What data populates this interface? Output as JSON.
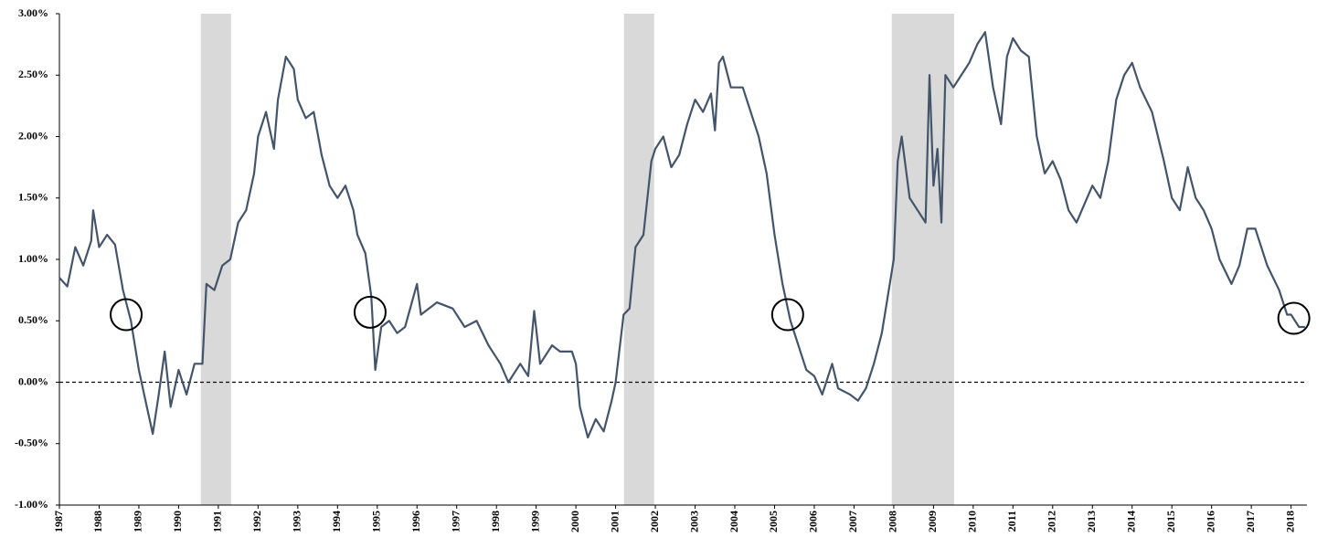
{
  "chart_data": {
    "type": "line",
    "series": [
      {
        "color": "#44546a",
        "x": [
          1987.0,
          1987.2,
          1987.4,
          1987.6,
          1987.8,
          1987.85,
          1988.0,
          1988.2,
          1988.4,
          1988.6,
          1988.8,
          1989.0,
          1989.2,
          1989.35,
          1989.5,
          1989.65,
          1989.8,
          1990.0,
          1990.2,
          1990.4,
          1990.6,
          1990.7,
          1990.9,
          1991.1,
          1991.3,
          1991.5,
          1991.7,
          1991.9,
          1992.0,
          1992.2,
          1992.4,
          1992.5,
          1992.7,
          1992.9,
          1993.0,
          1993.2,
          1993.4,
          1993.6,
          1993.8,
          1994.0,
          1994.2,
          1994.4,
          1994.5,
          1994.7,
          1994.85,
          1994.95,
          1995.1,
          1995.3,
          1995.5,
          1995.7,
          1996.0,
          1996.1,
          1996.5,
          1996.9,
          1997.2,
          1997.5,
          1997.8,
          1998.1,
          1998.3,
          1998.6,
          1998.8,
          1998.95,
          1999.1,
          1999.4,
          1999.6,
          1999.9,
          2000.0,
          2000.1,
          2000.3,
          2000.5,
          2000.7,
          2000.9,
          2001.0,
          2001.2,
          2001.35,
          2001.5,
          2001.7,
          2001.9,
          2002.0,
          2002.2,
          2002.4,
          2002.6,
          2002.8,
          2003.0,
          2003.2,
          2003.4,
          2003.5,
          2003.6,
          2003.7,
          2003.9,
          2004.2,
          2004.4,
          2004.6,
          2004.8,
          2005.0,
          2005.2,
          2005.4,
          2005.6,
          2005.8,
          2006.0,
          2006.2,
          2006.45,
          2006.6,
          2006.9,
          2007.1,
          2007.3,
          2007.5,
          2007.7,
          2007.9,
          2008.0,
          2008.1,
          2008.2,
          2008.4,
          2008.6,
          2008.8,
          2008.9,
          2009.0,
          2009.1,
          2009.2,
          2009.3,
          2009.5,
          2009.7,
          2009.9,
          2010.1,
          2010.3,
          2010.5,
          2010.7,
          2010.85,
          2011.0,
          2011.2,
          2011.4,
          2011.6,
          2011.8,
          2012.0,
          2012.2,
          2012.4,
          2012.6,
          2012.8,
          2013.0,
          2013.2,
          2013.4,
          2013.6,
          2013.8,
          2014.0,
          2014.2,
          2014.5,
          2014.8,
          2015.0,
          2015.2,
          2015.4,
          2015.6,
          2015.8,
          2016.0,
          2016.2,
          2016.5,
          2016.7,
          2016.9,
          2017.1,
          2017.4,
          2017.7,
          2017.9,
          2018.0,
          2018.2,
          2018.35
        ],
        "values": [
          0.85,
          0.78,
          1.1,
          0.95,
          1.15,
          1.4,
          1.1,
          1.2,
          1.12,
          0.75,
          0.5,
          0.1,
          -0.2,
          -0.42,
          -0.1,
          0.25,
          -0.2,
          0.1,
          -0.1,
          0.15,
          0.15,
          0.8,
          0.75,
          0.95,
          1.0,
          1.3,
          1.4,
          1.7,
          2.0,
          2.2,
          1.9,
          2.3,
          2.65,
          2.55,
          2.3,
          2.15,
          2.2,
          1.85,
          1.6,
          1.5,
          1.6,
          1.4,
          1.2,
          1.05,
          0.7,
          0.1,
          0.45,
          0.5,
          0.4,
          0.45,
          0.8,
          0.55,
          0.65,
          0.6,
          0.45,
          0.5,
          0.3,
          0.15,
          0.0,
          0.15,
          0.05,
          0.58,
          0.15,
          0.3,
          0.25,
          0.25,
          0.15,
          -0.2,
          -0.45,
          -0.3,
          -0.4,
          -0.15,
          0.0,
          0.55,
          0.6,
          1.1,
          1.2,
          1.8,
          1.9,
          2.0,
          1.75,
          1.85,
          2.1,
          2.3,
          2.2,
          2.35,
          2.05,
          2.6,
          2.65,
          2.4,
          2.4,
          2.2,
          2.0,
          1.7,
          1.2,
          0.8,
          0.5,
          0.3,
          0.1,
          0.05,
          -0.1,
          0.15,
          -0.05,
          -0.1,
          -0.15,
          -0.05,
          0.15,
          0.4,
          0.8,
          1.0,
          1.8,
          2.0,
          1.5,
          1.4,
          1.3,
          2.5,
          1.6,
          1.9,
          1.3,
          2.5,
          2.4,
          2.5,
          2.6,
          2.75,
          2.85,
          2.4,
          2.1,
          2.65,
          2.8,
          2.7,
          2.65,
          2.0,
          1.7,
          1.8,
          1.65,
          1.4,
          1.3,
          1.45,
          1.6,
          1.5,
          1.8,
          2.3,
          2.5,
          2.6,
          2.4,
          2.2,
          1.8,
          1.5,
          1.4,
          1.75,
          1.5,
          1.4,
          1.25,
          1.0,
          0.8,
          0.95,
          1.25,
          1.25,
          0.95,
          0.75,
          0.55,
          0.55,
          0.45,
          0.45
        ]
      }
    ],
    "xlim": [
      1987,
      2018.4
    ],
    "xticks": [
      1987,
      1988,
      1989,
      1990,
      1991,
      1992,
      1993,
      1994,
      1995,
      1996,
      1997,
      1998,
      1999,
      2000,
      2001,
      2002,
      2003,
      2004,
      2005,
      2006,
      2007,
      2008,
      2009,
      2010,
      2011,
      2012,
      2013,
      2014,
      2015,
      2016,
      2017,
      2018
    ],
    "ylim": [
      -1,
      3
    ],
    "yticks": [
      {
        "value": -1,
        "label": "-1.00%"
      },
      {
        "value": -0.5,
        "label": "-0.50%"
      },
      {
        "value": 0,
        "label": "0.00%"
      },
      {
        "value": 0.5,
        "label": "0.50%"
      },
      {
        "value": 1,
        "label": "1.00%"
      },
      {
        "value": 1.5,
        "label": "1.50%"
      },
      {
        "value": 2,
        "label": "2.00%"
      },
      {
        "value": 2.5,
        "label": "2.50%"
      },
      {
        "value": 3,
        "label": "3.00%"
      }
    ],
    "shaded_regions": [
      [
        1990.56,
        1991.32
      ],
      [
        2001.21,
        2001.97
      ],
      [
        2007.95,
        2009.52
      ]
    ],
    "reference_line": 0,
    "highlights": [
      {
        "x": 1988.68,
        "y": 0.55
      },
      {
        "x": 1994.82,
        "y": 0.57
      },
      {
        "x": 2005.33,
        "y": 0.55
      },
      {
        "x": 2018.07,
        "y": 0.52
      }
    ]
  }
}
